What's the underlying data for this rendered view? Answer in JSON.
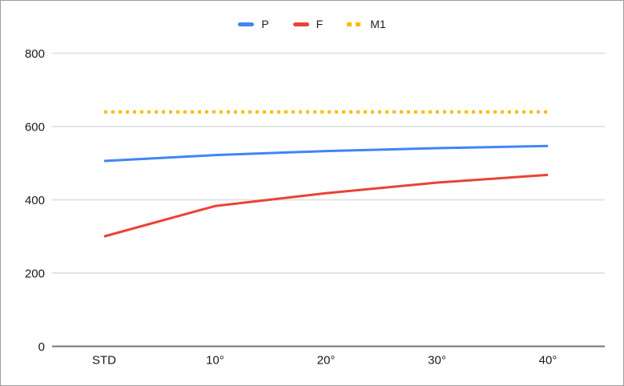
{
  "window": {
    "background": "#ffffff",
    "border_color": "#9e9e9e"
  },
  "chart_data": {
    "type": "line",
    "title": "",
    "xlabel": "",
    "ylabel": "",
    "categories": [
      "STD",
      "10°",
      "20°",
      "30°",
      "40°"
    ],
    "series": [
      {
        "name": "P",
        "color": "#4285f4",
        "style": "solid",
        "values": [
          506,
          522,
          533,
          541,
          547
        ]
      },
      {
        "name": "F",
        "color": "#ea4335",
        "style": "solid",
        "values": [
          300,
          383,
          418,
          447,
          468
        ]
      },
      {
        "name": "M1",
        "color": "#fbbc04",
        "style": "dotted",
        "values": [
          640,
          640,
          640,
          640,
          640
        ]
      }
    ],
    "ylim": [
      0,
      800
    ],
    "yticks": [
      0,
      200,
      400,
      600,
      800
    ],
    "grid": true,
    "legend_position": "top",
    "gridline_color": "#e3e3e3",
    "axis_line_color": "#757575",
    "tick_label_color": "#1a1a1a"
  }
}
